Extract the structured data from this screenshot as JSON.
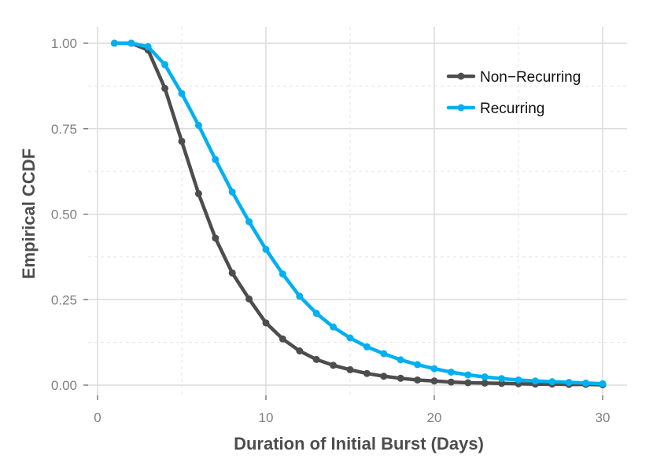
{
  "chart_data": {
    "type": "line",
    "title": "",
    "xlabel": "Duration of Initial Burst (Days)",
    "ylabel": "Empirical CCDF",
    "xlim": [
      0,
      30
    ],
    "ylim": [
      0,
      1
    ],
    "x_ticks": [
      0,
      10,
      20,
      30
    ],
    "x_tick_labels": [
      "0",
      "10",
      "20",
      "30"
    ],
    "y_ticks": [
      0,
      0.25,
      0.5,
      0.75,
      1
    ],
    "y_tick_labels": [
      "0.00",
      "0.25",
      "0.50",
      "0.75",
      "1.00"
    ],
    "grid": true,
    "legend_position": "top-right",
    "x": [
      1,
      2,
      3,
      4,
      5,
      6,
      7,
      8,
      9,
      10,
      11,
      12,
      13,
      14,
      15,
      16,
      17,
      18,
      19,
      20,
      21,
      22,
      23,
      24,
      25,
      26,
      27,
      28,
      29,
      30
    ],
    "series": [
      {
        "name": "Non−Recurring",
        "color": "#4d4d4d",
        "values": [
          1.0,
          1.0,
          0.98,
          0.868,
          0.713,
          0.56,
          0.43,
          0.328,
          0.252,
          0.182,
          0.135,
          0.1,
          0.075,
          0.058,
          0.045,
          0.034,
          0.026,
          0.02,
          0.015,
          0.012,
          0.009,
          0.007,
          0.006,
          0.005,
          0.004,
          0.003,
          0.003,
          0.002,
          0.002,
          0.001
        ]
      },
      {
        "name": "Recurring",
        "color": "#00b0f0",
        "values": [
          1.0,
          1.0,
          0.99,
          0.937,
          0.853,
          0.76,
          0.66,
          0.565,
          0.478,
          0.397,
          0.325,
          0.26,
          0.21,
          0.17,
          0.138,
          0.112,
          0.092,
          0.074,
          0.06,
          0.048,
          0.038,
          0.03,
          0.024,
          0.019,
          0.015,
          0.012,
          0.01,
          0.008,
          0.006,
          0.004
        ]
      }
    ]
  }
}
